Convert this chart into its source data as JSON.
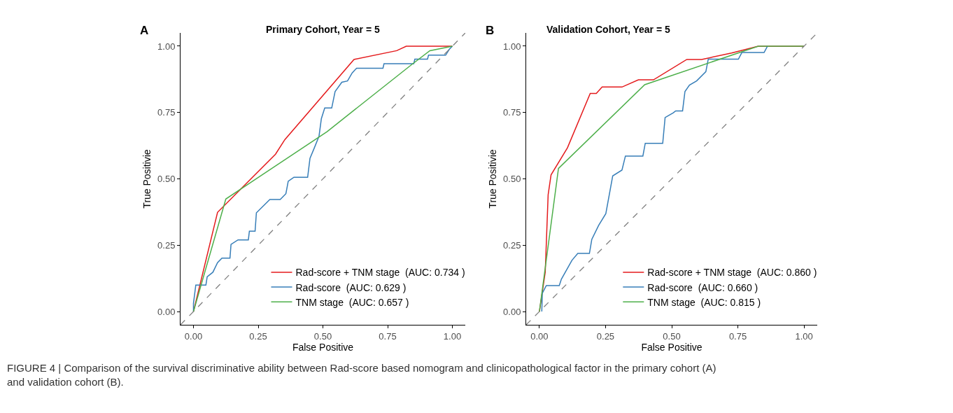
{
  "chart_data": [
    {
      "type": "line",
      "title": "Primary Cohort, Year = 5",
      "xlabel": "False Positive",
      "ylabel": "True Positivie",
      "annotations": [
        "A",
        "FIGURE 4 | Comparison of the survival discriminative ability between Rad-score based nomogram and clinicopathological factor in the primary cohort (A) and validation cohort (B)."
      ],
      "xlim": [
        -0.05,
        1.05
      ],
      "ylim": [
        -0.05,
        1.05
      ],
      "xticks": [
        {
          "value": 0,
          "label": "0.00"
        },
        {
          "value": 0.25,
          "label": "0.25"
        },
        {
          "value": 0.5,
          "label": "0.50"
        },
        {
          "value": 0.75,
          "label": "0.75"
        },
        {
          "value": 1,
          "label": "1.00"
        }
      ],
      "yticks": [
        {
          "value": 0,
          "label": "0.00"
        },
        {
          "value": 0.25,
          "label": "0.25"
        },
        {
          "value": 0.5,
          "label": "0.50"
        },
        {
          "value": 0.75,
          "label": "0.75"
        },
        {
          "value": 1,
          "label": "1.00"
        }
      ],
      "legend": "bottom right",
      "marker": "none",
      "series": [
        {
          "name": "Rad-score + TNM stage  (AUC: 0.734 )",
          "color": "#e41a1c",
          "x": [
            0,
            0.093,
            0.317,
            0.353,
            0.62,
            0.785,
            0.822,
            1
          ],
          "values": [
            0,
            0.374,
            0.593,
            0.648,
            0.95,
            0.983,
            1.0,
            1.0
          ]
        },
        {
          "name": "Rad-score  (AUC: 0.629 )",
          "color": "#377eb8",
          "x": [
            0,
            0,
            0.009,
            0.048,
            0.053,
            0.075,
            0.093,
            0.11,
            0.141,
            0.145,
            0.172,
            0.212,
            0.216,
            0.238,
            0.243,
            0.295,
            0.335,
            0.357,
            0.366,
            0.388,
            0.441,
            0.45,
            0.467,
            0.485,
            0.494,
            0.507,
            0.534,
            0.547,
            0.573,
            0.595,
            0.613,
            0.63,
            0.732,
            0.736,
            0.851,
            0.855,
            0.904,
            0.908,
            0.974,
            0.988,
            1
          ],
          "values": [
            0,
            0.031,
            0.1,
            0.1,
            0.131,
            0.148,
            0.184,
            0.201,
            0.201,
            0.253,
            0.27,
            0.27,
            0.303,
            0.303,
            0.372,
            0.422,
            0.422,
            0.444,
            0.491,
            0.506,
            0.506,
            0.577,
            0.617,
            0.661,
            0.727,
            0.767,
            0.767,
            0.829,
            0.864,
            0.869,
            0.899,
            0.917,
            0.917,
            0.934,
            0.934,
            0.951,
            0.951,
            0.966,
            0.966,
            0.988,
            1.0
          ]
        },
        {
          "name": "TNM stage  (AUC: 0.657 )",
          "color": "#4daf4a",
          "x": [
            0,
            0.125,
            0.516,
            0.842,
            0.913,
            1
          ],
          "values": [
            0,
            0.424,
            0.678,
            0.93,
            0.983,
            1.0
          ]
        },
        {
          "color": "#808080",
          "line_style": "dashed",
          "x": [
            -0.05,
            1.05
          ],
          "values": [
            -0.05,
            1.05
          ]
        }
      ]
    },
    {
      "type": "line",
      "title": "Validation Cohort, Year = 5",
      "xlabel": "False Positive",
      "ylabel": "True Positivie",
      "annotations": [
        "B"
      ],
      "xlim": [
        -0.05,
        1.05
      ],
      "ylim": [
        -0.05,
        1.05
      ],
      "xticks": [
        {
          "value": 0,
          "label": "0.00"
        },
        {
          "value": 0.25,
          "label": "0.25"
        },
        {
          "value": 0.5,
          "label": "0.50"
        },
        {
          "value": 0.75,
          "label": "0.75"
        },
        {
          "value": 1,
          "label": "1.00"
        }
      ],
      "yticks": [
        {
          "value": 0,
          "label": "0.00"
        },
        {
          "value": 0.25,
          "label": "0.25"
        },
        {
          "value": 0.5,
          "label": "0.50"
        },
        {
          "value": 0.75,
          "label": "0.75"
        },
        {
          "value": 1,
          "label": "1.00"
        }
      ],
      "legend": "bottom right",
      "marker": "none",
      "series": [
        {
          "name": "Rad-score + TNM stage  (AUC: 0.860 )",
          "color": "#e41a1c",
          "x": [
            0,
            0.022,
            0.033,
            0.044,
            0.106,
            0.192,
            0.215,
            0.237,
            0.312,
            0.374,
            0.431,
            0.557,
            0.613,
            0.726,
            0.827,
            1
          ],
          "values": [
            0,
            0.148,
            0.44,
            0.515,
            0.617,
            0.822,
            0.822,
            0.846,
            0.846,
            0.873,
            0.873,
            0.95,
            0.95,
            0.974,
            1.0,
            1.0
          ]
        },
        {
          "name": "Rad-score  (AUC: 0.660 )",
          "color": "#377eb8",
          "x": [
            0.009,
            0.011,
            0.026,
            0.075,
            0.083,
            0.123,
            0.145,
            0.189,
            0.198,
            0.224,
            0.251,
            0.277,
            0.312,
            0.325,
            0.391,
            0.4,
            0.466,
            0.475,
            0.506,
            0.515,
            0.541,
            0.55,
            0.567,
            0.594,
            0.629,
            0.638,
            0.752,
            0.765,
            0.849,
            0.862
          ],
          "values": [
            0,
            0.069,
            0.098,
            0.098,
            0.122,
            0.193,
            0.219,
            0.219,
            0.272,
            0.325,
            0.369,
            0.511,
            0.533,
            0.586,
            0.586,
            0.634,
            0.634,
            0.731,
            0.749,
            0.756,
            0.756,
            0.829,
            0.853,
            0.869,
            0.904,
            0.951,
            0.951,
            0.976,
            0.976,
            1.0
          ]
        },
        {
          "name": "TNM stage  (AUC: 0.815 )",
          "color": "#4daf4a",
          "x": [
            0,
            0.072,
            0.398,
            0.827,
            1
          ],
          "values": [
            0,
            0.539,
            0.855,
            1.0,
            1.0
          ]
        },
        {
          "color": "#808080",
          "line_style": "dashed",
          "x": [
            -0.05,
            1.05
          ],
          "values": [
            -0.05,
            1.05
          ]
        }
      ]
    }
  ]
}
